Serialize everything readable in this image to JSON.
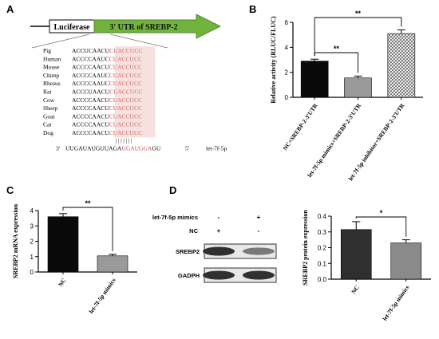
{
  "panels": {
    "A": {
      "label": "A",
      "construct": {
        "left": "Luciferase",
        "right": "3' UTR of SREBP-2"
      },
      "species": [
        {
          "name": "Pig",
          "seq": "ACCUCAACUCUACCUCC"
        },
        {
          "name": "Human",
          "seq": "ACCCCAAUCCUACCUCC"
        },
        {
          "name": "Mouse",
          "seq": "ACCCCAACUCUACCUCC"
        },
        {
          "name": "Chimp",
          "seq": "ACCCCAAUCCUACCUCC"
        },
        {
          "name": "Rhesus",
          "seq": "ACCCCAAUCCUACCUCC"
        },
        {
          "name": "Rat",
          "seq": "ACCCUAACUCUACCUCC"
        },
        {
          "name": "Cow",
          "seq": "ACCCCAACUCUACCUCC"
        },
        {
          "name": "Sheep",
          "seq": "ACCCCAACUCUACCUCC"
        },
        {
          "name": "Goat",
          "seq": "ACCCCAACUCUACCUCC"
        },
        {
          "name": "Cat",
          "seq": "ACCCCAACUCUACCUCC"
        },
        {
          "name": "Dog",
          "seq": "ACCCCAACUCUACCUCC"
        }
      ],
      "mirna": {
        "prefix": "3'",
        "seq": "UUGAUAUGUUAGAUGAUGGAGU",
        "suffix": "5'",
        "name": "let-7f-5p"
      },
      "pairing_marks": "| | | | | | |"
    },
    "B": {
      "label": "B"
    },
    "C": {
      "label": "C"
    },
    "D": {
      "label": "D",
      "rows": [
        {
          "label": "let-7f-5p mimics",
          "lane1": "-",
          "lane2": "+"
        },
        {
          "label": "NC",
          "lane1": "+",
          "lane2": "-"
        }
      ],
      "bands": [
        {
          "label": "SREBP2",
          "lane1_intensity": 0.85,
          "lane2_intensity": 0.55
        },
        {
          "label": "GADPH",
          "lane1_intensity": 0.85,
          "lane2_intensity": 0.85
        }
      ]
    }
  },
  "colors": {
    "arrow": "#72b33d",
    "highlight": "#e8a5a5",
    "bar_black": "#0a0a0a",
    "bar_gray": "#9a9a9a",
    "bar_d_nc": "#2f2f2f",
    "bar_d_mimic": "#8a8a8a"
  },
  "chart_data": [
    {
      "id": "B",
      "type": "bar",
      "categories": [
        "NC+SREBP-2-3'UTR",
        "let-7f-5p mimics+SREBP-2-3'UTR",
        "let-7f-5p inhibitor+SREBP-2-3'UTR"
      ],
      "values": [
        2.9,
        1.55,
        5.1
      ],
      "errors": [
        0.15,
        0.15,
        0.3
      ],
      "ylabel": "Relative activity (RLUC/FLUC)",
      "ylim": [
        0,
        6
      ],
      "yticks": [
        0,
        2,
        4,
        6
      ],
      "significance": [
        {
          "from": 0,
          "to": 1,
          "text": "**"
        },
        {
          "from": 0,
          "to": 2,
          "text": "**"
        }
      ]
    },
    {
      "id": "C",
      "type": "bar",
      "categories": [
        "NC",
        "let-7f-5p mimics"
      ],
      "values": [
        3.6,
        1.05
      ],
      "errors": [
        0.2,
        0.1
      ],
      "ylabel": "SREBP2 mRNA expression",
      "ylim": [
        0,
        4
      ],
      "yticks": [
        0,
        1,
        2,
        3,
        4
      ],
      "significance": [
        {
          "from": 0,
          "to": 1,
          "text": "**"
        }
      ]
    },
    {
      "id": "D",
      "type": "bar",
      "categories": [
        "NC",
        "let-7f-5p mimics"
      ],
      "values": [
        0.315,
        0.23
      ],
      "errors": [
        0.05,
        0.02
      ],
      "ylabel": "SREBP2 protein expression",
      "ylim": [
        0,
        0.4
      ],
      "yticks": [
        0.0,
        0.1,
        0.2,
        0.3,
        0.4
      ],
      "significance": [
        {
          "from": 0,
          "to": 1,
          "text": "*"
        }
      ]
    }
  ]
}
